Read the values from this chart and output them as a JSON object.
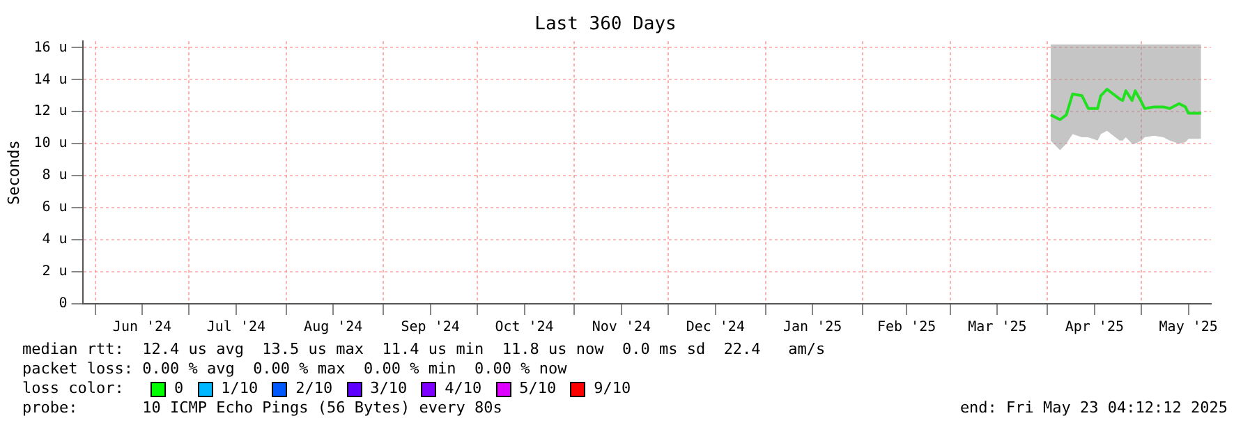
{
  "chart_data": {
    "type": "line",
    "title": "Last 360 Days",
    "ylabel": "Seconds",
    "x": [
      "2025-04-02",
      "2025-04-05",
      "2025-04-07",
      "2025-04-09",
      "2025-04-12",
      "2025-04-14",
      "2025-04-17",
      "2025-04-18",
      "2025-04-20",
      "2025-04-22",
      "2025-04-24",
      "2025-04-25",
      "2025-04-26",
      "2025-04-28",
      "2025-04-29",
      "2025-05-01",
      "2025-05-02",
      "2025-05-05",
      "2025-05-08",
      "2025-05-10",
      "2025-05-13",
      "2025-05-15",
      "2025-05-16",
      "2025-05-20"
    ],
    "series": [
      {
        "color": "#20e020",
        "values": [
          11.8,
          11.5,
          11.8,
          13.1,
          13.0,
          12.2,
          12.2,
          13.0,
          13.4,
          13.1,
          12.8,
          12.7,
          13.3,
          12.7,
          13.3,
          12.6,
          12.2,
          12.3,
          12.3,
          12.2,
          12.5,
          12.3,
          11.9,
          11.9
        ],
        "lower": [
          10.2,
          9.6,
          10.0,
          10.6,
          10.4,
          10.4,
          10.2,
          10.6,
          10.8,
          10.5,
          10.2,
          10.2,
          10.4,
          10.0,
          10.0,
          10.2,
          10.4,
          10.5,
          10.4,
          10.2,
          10.0,
          10.1,
          10.3,
          10.3
        ],
        "upper": [
          16.2,
          16.2,
          16.2,
          16.2,
          16.2,
          16.2,
          16.2,
          16.2,
          16.2,
          16.2,
          16.2,
          16.2,
          16.2,
          16.2,
          16.2,
          16.2,
          16.2,
          16.2,
          16.2,
          16.2,
          16.2,
          16.2,
          16.2,
          16.2
        ]
      }
    ],
    "xlim": [
      "2024-05-28",
      "2025-05-23T04:12"
    ],
    "xticks": [
      {
        "value": "2024-06-01",
        "label": null
      },
      {
        "value": "2024-06-16",
        "label": "Jun '24"
      },
      {
        "value": "2024-07-01",
        "label": null
      },
      {
        "value": "2024-07-16",
        "label": "Jul '24"
      },
      {
        "value": "2024-08-01",
        "label": null
      },
      {
        "value": "2024-08-16",
        "label": "Aug '24"
      },
      {
        "value": "2024-09-01",
        "label": null
      },
      {
        "value": "2024-09-16",
        "label": "Sep '24"
      },
      {
        "value": "2024-10-01",
        "label": null
      },
      {
        "value": "2024-10-16",
        "label": "Oct '24"
      },
      {
        "value": "2024-11-01",
        "label": null
      },
      {
        "value": "2024-11-16",
        "label": "Nov '24"
      },
      {
        "value": "2024-12-01",
        "label": null
      },
      {
        "value": "2024-12-16",
        "label": "Dec '24"
      },
      {
        "value": "2025-01-01",
        "label": null
      },
      {
        "value": "2025-01-16",
        "label": "Jan '25"
      },
      {
        "value": "2025-02-01",
        "label": null
      },
      {
        "value": "2025-02-15",
        "label": "Feb '25"
      },
      {
        "value": "2025-03-01",
        "label": null
      },
      {
        "value": "2025-03-16",
        "label": "Mar '25"
      },
      {
        "value": "2025-04-01",
        "label": null
      },
      {
        "value": "2025-04-16",
        "label": "Apr '25"
      },
      {
        "value": "2025-05-01",
        "label": null
      },
      {
        "value": "2025-05-16",
        "label": "May '25"
      }
    ],
    "ylim": [
      0,
      16.4
    ],
    "yticks": [
      0,
      {
        "value": 2,
        "label": "2 u"
      },
      {
        "value": 4,
        "label": "4 u"
      },
      {
        "value": 6,
        "label": "6 u"
      },
      {
        "value": 8,
        "label": "8 u"
      },
      {
        "value": 10,
        "label": "10 u"
      },
      {
        "value": 12,
        "label": "12 u"
      },
      {
        "value": 14,
        "label": "14 u"
      },
      {
        "value": 16,
        "label": "16 u"
      }
    ],
    "grid": true,
    "legend": false,
    "marker": "none",
    "line_style": "solid",
    "annotations": [
      "median rtt:  12.4 us avg  13.5 us max  11.4 us min  11.8 us now  0.0 ms sd  22.4   am/s",
      "packet loss: 0.00 % avg  0.00 % max  0.00 % min  0.00 % now",
      "loss color:",
      "0",
      "1/10",
      "2/10",
      "3/10",
      "4/10",
      "5/10",
      "9/10",
      "probe:       10 ICMP Echo Pings (56 Bytes) every 80s",
      "end: Fri May 23 04:12:12 2025"
    ]
  }
}
